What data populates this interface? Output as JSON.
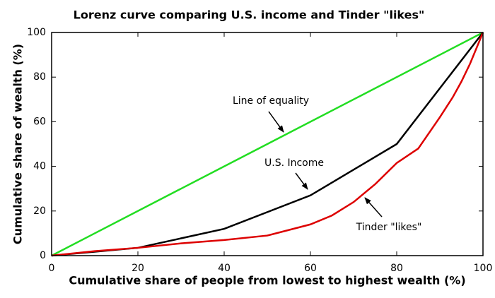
{
  "chart_data": {
    "type": "line",
    "title": "Lorenz curve comparing U.S. income and Tinder \"likes\"",
    "x_label": "Cumulative share of people from lowest to highest wealth (%)",
    "y_label": "Cumulative share of wealth (%)",
    "xlim": [
      0,
      100
    ],
    "ylim": [
      0,
      100
    ],
    "xticks": [
      0,
      20,
      40,
      60,
      80,
      100
    ],
    "yticks": [
      0,
      20,
      40,
      60,
      80,
      100
    ],
    "series": [
      {
        "name": "Line of equality",
        "color": "#22dd22",
        "x": [
          0,
          100
        ],
        "values": [
          0,
          100
        ]
      },
      {
        "name": "U.S. Income",
        "color": "#000000",
        "x": [
          0,
          20,
          40,
          60,
          80,
          100
        ],
        "values": [
          0,
          3.5,
          12,
          27,
          50,
          100
        ]
      },
      {
        "name": "Tinder \"likes\"",
        "color": "#dd0000",
        "x": [
          0,
          10,
          20,
          30,
          40,
          50,
          60,
          65,
          70,
          75,
          80,
          85,
          90,
          93,
          95,
          97,
          100
        ],
        "values": [
          0,
          2,
          3.5,
          5.5,
          7,
          9,
          14,
          18,
          24,
          32,
          41.5,
          48,
          62,
          71,
          78,
          86,
          100
        ]
      }
    ]
  }
}
